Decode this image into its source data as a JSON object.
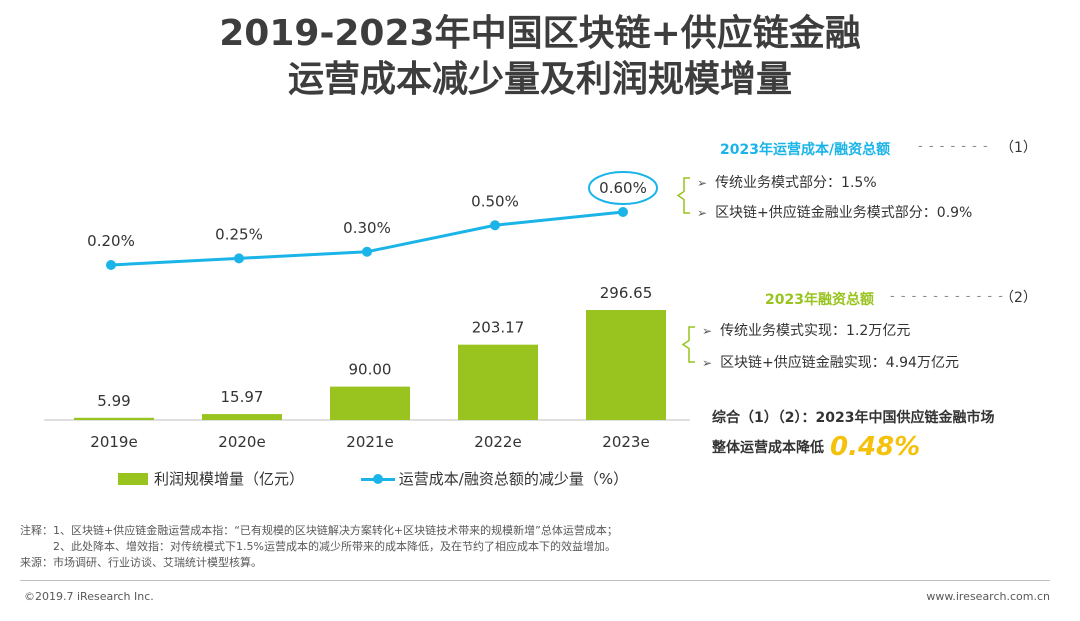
{
  "title": {
    "line1": "2019-2023年中国区块链+供应链金融",
    "line2": "运营成本减少量及利润规模增量"
  },
  "chart_data": {
    "type": "bar",
    "categories": [
      "2019e",
      "2020e",
      "2021e",
      "2022e",
      "2023e"
    ],
    "series": [
      {
        "name": "利润规模增量（亿元）",
        "type": "bar",
        "values": [
          5.99,
          15.97,
          90.0,
          203.17,
          296.65
        ],
        "labels": [
          "5.99",
          "15.97",
          "90.00",
          "203.17",
          "296.65"
        ],
        "color": "#99c31f"
      },
      {
        "name": "运营成本/融资总额的减少量（%）",
        "type": "line",
        "values": [
          0.2,
          0.25,
          0.3,
          0.5,
          0.6
        ],
        "labels": [
          "0.20%",
          "0.25%",
          "0.30%",
          "0.50%",
          "0.60%"
        ],
        "color": "#1bb4e8"
      }
    ],
    "highlight_point": "2023e",
    "legend_position": "bottom-left",
    "grid": false
  },
  "annotations": {
    "block1": {
      "heading": "2023年运营成本/融资总额",
      "heading_color": "#1bb4e8",
      "dashes": "- - - - - - -",
      "ref": "（1）",
      "items": [
        "传统业务模式部分：1.5%",
        "区块链+供应链金融业务模式部分：0.9%"
      ]
    },
    "block2": {
      "heading": "2023年融资总额",
      "heading_color": "#99c31f",
      "dashes": "- - - - - - - - - - -",
      "ref": "（2）",
      "items": [
        "传统业务模式实现：1.2万亿元",
        "区块链+供应链金融实现：4.94万亿元"
      ]
    },
    "summary": {
      "line1": "综合（1）（2）：2023年中国供应链金融市场",
      "line2": "整体运营成本降低",
      "value": "0.48%",
      "value_color": "#f4c20d"
    },
    "arrow_glyph": "➢"
  },
  "notes": [
    "注释：1、区块链+供应链金融运营成本指：“已有规模的区块链解决方案转化+区块链技术带来的规模新增”总体运营成本；",
    "　　　2、此处降本、增效指：对传统模式下1.5%运营成本的减少所带来的成本降低，及在节约了相应成本下的效益增加。",
    "来源：市场调研、行业访谈、艾瑞统计模型核算。"
  ],
  "footer": {
    "left": "©2019.7 iResearch Inc.",
    "right": "www.iresearch.com.cn"
  }
}
